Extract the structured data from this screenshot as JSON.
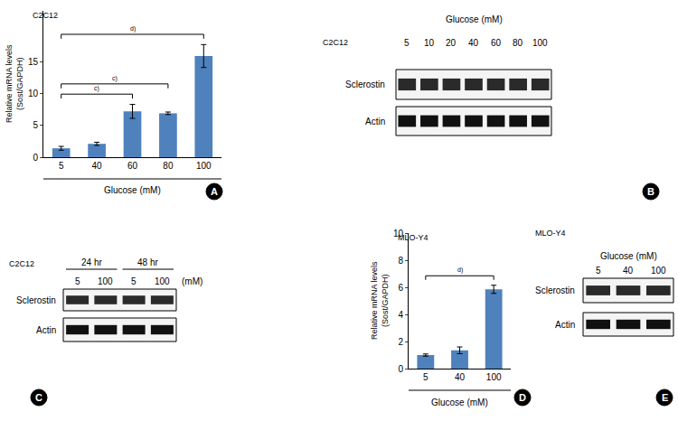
{
  "chart_data": [
    {
      "panel": "A",
      "type": "bar",
      "title": "C2C12",
      "categories": [
        "5",
        "40",
        "60",
        "80",
        "100"
      ],
      "values": [
        1.4,
        2.1,
        7.2,
        6.9,
        15.9
      ],
      "errors": [
        0.3,
        0.25,
        1.1,
        0.2,
        1.8
      ],
      "color": "#4f81bd",
      "x_label": "Glucose (mM)",
      "y_label": "Relative mRNA levels\n(Sost/GAPDH)",
      "ylim": [
        0,
        23
      ],
      "yticks": [
        0,
        5,
        10,
        15
      ],
      "grid": false,
      "significance": [
        {
          "from": "5",
          "to": "60",
          "label": "c)"
        },
        {
          "from": "5",
          "to": "80",
          "label": "c)"
        },
        {
          "from": "5",
          "to": "100",
          "label": "d)"
        }
      ]
    },
    {
      "panel": "B",
      "type": "blot",
      "title": "C2C12",
      "header": "Glucose (mM)",
      "lanes": [
        "5",
        "10",
        "20",
        "40",
        "60",
        "80",
        "100"
      ],
      "rows": [
        "Sclerostin",
        "Actin"
      ]
    },
    {
      "panel": "C",
      "type": "blot",
      "title": "C2C12",
      "groups": [
        {
          "label": "24 hr",
          "lanes": [
            "5",
            "100"
          ]
        },
        {
          "label": "48 hr",
          "lanes": [
            "5",
            "100"
          ]
        }
      ],
      "unit": "(mM)",
      "rows": [
        "Sclerostin",
        "Actin"
      ]
    },
    {
      "panel": "D",
      "type": "bar",
      "title": "MLO-Y4",
      "categories": [
        "5",
        "40",
        "100"
      ],
      "values": [
        1.0,
        1.35,
        5.85
      ],
      "errors": [
        0.08,
        0.25,
        0.3
      ],
      "color": "#4f81bd",
      "x_label": "Glucose (mM)",
      "y_label": "Relative mRNA levels\n(Sost/GAPDH)",
      "ylim": [
        0,
        10
      ],
      "yticks": [
        0,
        2,
        4,
        6,
        8,
        10
      ],
      "grid": false,
      "significance": [
        {
          "from": "5",
          "to": "100",
          "label": "d)"
        }
      ]
    },
    {
      "panel": "E",
      "type": "blot",
      "title": "MLO-Y4",
      "header": "Glucose (mM)",
      "lanes": [
        "5",
        "40",
        "100"
      ],
      "rows": [
        "Sclerostin",
        "Actin"
      ]
    }
  ]
}
